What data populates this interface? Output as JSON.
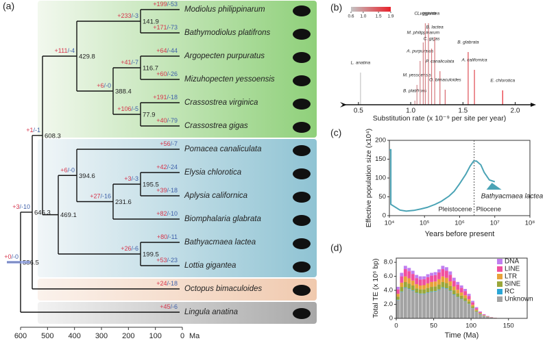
{
  "chart_data": [
    {
      "panel": "(a)",
      "type": "tree",
      "xlabel": "Ma",
      "xlim": [
        600,
        0
      ],
      "xticks": [
        600,
        500,
        400,
        300,
        200,
        100,
        0
      ],
      "separator": "/",
      "gain_color": "#d6334a",
      "loss_color": "#3e5fa8",
      "tree": {
        "label": "586.5",
        "gain": "+0",
        "loss": "-0",
        "children": [
          {
            "label": "646.3",
            "gain": "+3",
            "loss": "-10",
            "children": [
              {
                "label": "608.3",
                "gain": "+1",
                "loss": "-1",
                "children": [
                  {
                    "label": "429.8",
                    "gain": "+111",
                    "loss": "-4",
                    "children": [
                      {
                        "label": "141.9",
                        "gain": "+233",
                        "loss": "-3",
                        "children": [
                          {
                            "name": "Modiolus philippinarum",
                            "gain": "+199",
                            "loss": "-53"
                          },
                          {
                            "name": "Bathymodiolus platifrons",
                            "gain": "+171",
                            "loss": "-73",
                            "color": "#e8202a"
                          }
                        ]
                      },
                      {
                        "label": "388.4",
                        "gain": "+6",
                        "loss": "-0",
                        "children": [
                          {
                            "label": "116.7",
                            "gain": "+41",
                            "loss": "-7",
                            "children": [
                              {
                                "name": "Argopecten purpuratus",
                                "gain": "+64",
                                "loss": "-44"
                              },
                              {
                                "name": "Mizuhopecten yessoensis",
                                "gain": "+60",
                                "loss": "-26"
                              }
                            ]
                          },
                          {
                            "label": "77.9",
                            "gain": "+106",
                            "loss": "-5",
                            "children": [
                              {
                                "name": "Crassostrea virginica",
                                "gain": "+191",
                                "loss": "-18"
                              },
                              {
                                "name": "Crassostrea gigas",
                                "gain": "+40",
                                "loss": "-79"
                              }
                            ]
                          }
                        ]
                      }
                    ]
                  },
                  {
                    "label": "469.1",
                    "children": [
                      {
                        "label": "394.6",
                        "gain": "+6",
                        "loss": "-0",
                        "children": [
                          {
                            "name": "Pomacea canaliculata",
                            "gain": "+56",
                            "loss": "-7"
                          },
                          {
                            "label": "231.6",
                            "gain": "+27",
                            "loss": "-16",
                            "children": [
                              {
                                "label": "195.5",
                                "gain": "+3",
                                "loss": "-3",
                                "children": [
                                  {
                                    "name": "Elysia chlorotica",
                                    "gain": "+42",
                                    "loss": "-24"
                                  },
                                  {
                                    "name": "Aplysia californica",
                                    "gain": "+39",
                                    "loss": "-18"
                                  }
                                ]
                              },
                              {
                                "name": "Biomphalaria glabrata",
                                "gain": "+82",
                                "loss": "-10"
                              }
                            ]
                          }
                        ]
                      },
                      {
                        "label": "199.5",
                        "gain": "+26",
                        "loss": "-6",
                        "children": [
                          {
                            "name": "Bathyacmaea lactea",
                            "gain": "+80",
                            "loss": "-11",
                            "color": "#e8202a"
                          },
                          {
                            "name": "Lottia gigantea",
                            "gain": "+53",
                            "loss": "-23"
                          }
                        ]
                      }
                    ]
                  }
                ]
              },
              {
                "name": "Octopus bimaculoides",
                "gain": "+24",
                "loss": "-18"
              }
            ]
          },
          {
            "name": "Lingula anatina",
            "gain": "+45",
            "loss": "-6"
          }
        ]
      }
    },
    {
      "panel": "(b)",
      "type": "rate",
      "xlabel": "Substitution rate (x 10⁻⁹ per site per year)",
      "categories": [
        "L. anatina",
        "B. platifrons",
        "M. yessoensis",
        "A. purpuratus",
        "M. philippinarum",
        "C. virginica",
        "L. gigantea",
        "C. gigas",
        "B. lactea",
        "P. canaliculata",
        "O. bimaculoides",
        "B. glabrata",
        "A. californica",
        "E. chlorotica"
      ],
      "values": [
        0.52,
        1.04,
        1.06,
        1.09,
        1.12,
        1.14,
        1.17,
        1.2,
        1.23,
        1.28,
        1.33,
        1.55,
        1.61,
        1.88
      ],
      "label_colors": [
        "#111111",
        "#111111",
        "#111111",
        "#111111",
        "#111111",
        "#111111",
        "#111111",
        "#111111",
        "#e8202a",
        "#111111",
        "#111111",
        "#111111",
        "#111111",
        "#111111"
      ],
      "xlim": [
        0.35,
        2.2
      ],
      "xticks": [
        0.5,
        {
          "value": 1.0,
          "label": "1.0"
        },
        1.5,
        {
          "value": 2.0,
          "label": "2.0"
        }
      ],
      "clim": [
        0.6,
        1.9
      ],
      "cmap": [
        "#c4c4c4",
        "#e8202a"
      ],
      "cticks": [
        0.6,
        {
          "value": 1.0,
          "label": "1.0"
        },
        1.5,
        1.9
      ]
    },
    {
      "panel": "(c)",
      "type": "line",
      "ylabel": "Effective population size (x10⁴)",
      "xlabel": "Years before present",
      "xscale": "log",
      "xlim": [
        10000,
        100000000
      ],
      "xticks": [
        {
          "value": 10000,
          "label": "10⁴"
        },
        {
          "value": 100000,
          "label": "10⁵"
        },
        {
          "value": 1000000,
          "label": "10⁶"
        },
        {
          "value": 10000000,
          "label": "10⁷"
        },
        {
          "value": 100000000,
          "label": "10⁸"
        }
      ],
      "ylim": [
        0,
        200
      ],
      "yticks": [
        0,
        50,
        100,
        150,
        200
      ],
      "x": [
        10000,
        11000,
        11000,
        20000,
        30000,
        50000,
        80000,
        120000,
        200000,
        300000,
        500000,
        700000,
        1000000,
        1500000,
        2000000,
        2500000,
        3000000,
        4000000,
        5000000,
        7000000,
        10000000
      ],
      "values": [
        175,
        175,
        30,
        15,
        12,
        14,
        18,
        22,
        30,
        38,
        52,
        65,
        85,
        110,
        132,
        145,
        145,
        135,
        115,
        95,
        90
      ],
      "color": "#4aa3b5",
      "boundary": 2580000,
      "annotations": [
        "Pleistocene",
        "Pliocene",
        "Bathyacmaea lactea"
      ]
    },
    {
      "panel": "(d)",
      "type": "stacked-histogram",
      "ylabel": "Total TE (x 10⁶ bp)",
      "xlabel": "Time (Ma)",
      "xlim": [
        0,
        175
      ],
      "xticks": [
        0,
        50,
        100,
        150
      ],
      "ylim": [
        0,
        8.6
      ],
      "yticks": [
        0,
        {
          "value": 2,
          "label": "2.0"
        },
        {
          "value": 4,
          "label": "4.0"
        },
        {
          "value": 6,
          "label": "6.0"
        },
        {
          "value": 8,
          "label": "8.0"
        }
      ],
      "bins": [
        0,
        5,
        10,
        15,
        20,
        25,
        30,
        35,
        40,
        45,
        50,
        55,
        60,
        65,
        70,
        75,
        80,
        85,
        90,
        95,
        100,
        105,
        110,
        115,
        120,
        125,
        130,
        135,
        140,
        145,
        150
      ],
      "series": [
        {
          "name": "DNA",
          "color": "#c07ef0",
          "values": [
            0.36,
            0.5,
            0.47,
            0.47,
            0.46,
            0.45,
            0.47,
            0.42,
            0.43,
            0.4,
            0.42,
            0.44,
            0.47,
            0.5,
            0.48,
            0.44,
            0.38,
            0.34,
            0.31,
            0.29,
            0.22,
            0.15,
            0.09,
            0.06,
            0.04,
            0.02,
            0.01,
            0,
            0,
            0
          ]
        },
        {
          "name": "LINE",
          "color": "#f0509e",
          "values": [
            0.63,
            0.91,
            1.05,
            1.01,
            0.95,
            0.87,
            0.84,
            0.84,
            0.88,
            0.91,
            0.92,
            0.98,
            1.05,
            1.02,
            0.94,
            0.81,
            0.73,
            0.66,
            0.59,
            0.49,
            0.35,
            0.22,
            0.14,
            0.08,
            0.05,
            0.03,
            0.01,
            0.01,
            0.01,
            0
          ]
        },
        {
          "name": "LTR",
          "color": "#e8a23a",
          "values": [
            0.4,
            0.6,
            0.8,
            0.75,
            0.7,
            0.6,
            0.55,
            0.6,
            0.65,
            0.7,
            0.7,
            0.75,
            0.8,
            0.75,
            0.65,
            0.55,
            0.5,
            0.45,
            0.4,
            0.3,
            0.2,
            0.12,
            0.08,
            0.04,
            0.02,
            0.01,
            0.01,
            0,
            0,
            0
          ]
        },
        {
          "name": "SINE",
          "color": "#9aa63a",
          "values": [
            0.45,
            0.65,
            0.75,
            0.72,
            0.68,
            0.62,
            0.6,
            0.6,
            0.63,
            0.65,
            0.66,
            0.7,
            0.75,
            0.73,
            0.67,
            0.58,
            0.52,
            0.47,
            0.42,
            0.35,
            0.25,
            0.16,
            0.1,
            0.06,
            0.04,
            0.02,
            0.01,
            0.01,
            0,
            0
          ]
        },
        {
          "name": "RC",
          "color": "#2aa6d6",
          "values": [
            0.05,
            0.07,
            0.08,
            0.07,
            0.07,
            0.06,
            0.06,
            0.06,
            0.06,
            0.07,
            0.07,
            0.07,
            0.08,
            0.07,
            0.07,
            0.06,
            0.05,
            0.05,
            0.04,
            0.04,
            0.03,
            0.02,
            0.01,
            0.01,
            0,
            0,
            0,
            0,
            0,
            0
          ]
        },
        {
          "name": "Unknown",
          "color": "#a3a3a3",
          "values": [
            2.61,
            3.77,
            4.35,
            4.18,
            3.94,
            3.6,
            3.48,
            3.48,
            3.65,
            3.77,
            3.83,
            4.06,
            4.35,
            4.23,
            3.89,
            3.36,
            3.02,
            2.73,
            2.44,
            2.03,
            1.45,
            0.93,
            0.58,
            0.35,
            0.2,
            0.12,
            0.06,
            0.03,
            0.02,
            0.01
          ]
        }
      ]
    }
  ]
}
